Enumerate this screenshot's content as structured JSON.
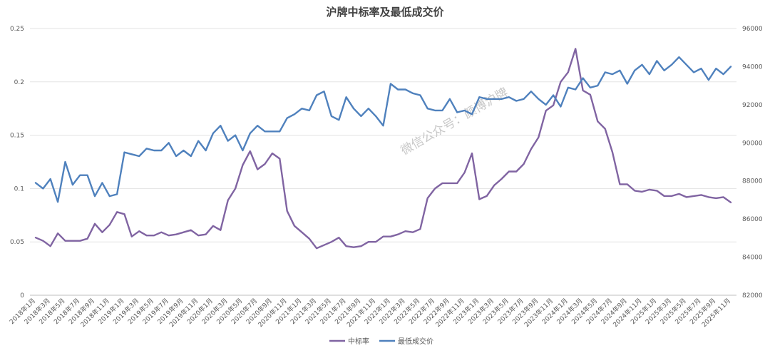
{
  "chart_data": {
    "type": "line",
    "title": "沪牌中标率及最低成交价",
    "watermark": "微信公众号：颜博沪牌",
    "xlabel": "",
    "ylabel": "",
    "ylim": [
      0,
      0.25
    ],
    "y2lim": [
      82000,
      96000
    ],
    "yticks": [
      "0",
      "0.05",
      "0.1",
      "0.15",
      "0.2",
      "0.25"
    ],
    "y2ticks": [
      "82000",
      "84000",
      "86000",
      "88000",
      "90000",
      "92000",
      "94000",
      "96000"
    ],
    "grid": true,
    "legend": "bottom-center",
    "x_tick_labels": [
      "2018年1月",
      "2018年3月",
      "2018年5月",
      "2018年7月",
      "2018年9月",
      "2018年11月",
      "2019年1月",
      "2019年3月",
      "2019年5月",
      "2019年7月",
      "2019年9月",
      "2019年11月",
      "2020年1月",
      "2020年3月",
      "2020年5月",
      "2020年7月",
      "2020年9月",
      "2020年11月",
      "2021年1月",
      "2021年3月",
      "2021年5月",
      "2021年7月",
      "2021年9月",
      "2021年11月",
      "2022年1月",
      "2022年3月",
      "2022年5月",
      "2022年7月",
      "2022年9月",
      "2022年11月",
      "2023年1月",
      "2023年3月",
      "2023年5月",
      "2023年7月",
      "2023年9月",
      "2023年11月",
      "2024年1月",
      "2024年3月",
      "2024年5月",
      "2024年7月",
      "2024年9月",
      "2024年11月",
      "2025年1月",
      "2025年3月",
      "2025年5月",
      "2025年7月",
      "2025年9月",
      "2025年11月"
    ],
    "series": [
      {
        "name": "中标率",
        "axis": "left",
        "color": "#8064a2",
        "values": [
          0.054,
          0.051,
          0.046,
          0.058,
          0.051,
          0.051,
          0.051,
          0.053,
          0.067,
          0.059,
          0.066,
          0.078,
          0.076,
          0.055,
          0.06,
          0.056,
          0.056,
          0.059,
          0.056,
          0.057,
          0.059,
          0.061,
          0.056,
          0.057,
          0.065,
          0.061,
          0.089,
          0.1,
          0.122,
          0.135,
          0.118,
          0.123,
          0.133,
          0.128,
          0.079,
          0.065,
          0.059,
          0.053,
          0.044,
          0.047,
          0.05,
          0.054,
          0.046,
          0.045,
          0.046,
          0.05,
          0.05,
          0.055,
          0.055,
          0.057,
          0.06,
          0.059,
          0.062,
          0.091,
          0.1,
          0.105,
          0.105,
          0.105,
          0.115,
          0.133,
          0.09,
          0.093,
          0.103,
          0.109,
          0.116,
          0.116,
          0.123,
          0.137,
          0.148,
          0.173,
          0.178,
          0.2,
          0.209,
          0.231,
          0.192,
          0.188,
          0.163,
          0.156,
          0.134,
          0.104,
          0.104,
          0.098,
          0.097,
          0.099,
          0.098,
          0.093,
          0.093,
          0.095,
          0.092,
          0.093,
          0.094,
          0.092,
          0.091,
          0.092,
          0.087
        ]
      },
      {
        "name": "最低成交价",
        "axis": "right",
        "color": "#4f81bd",
        "values": [
          87900,
          87600,
          88100,
          86900,
          89000,
          87800,
          88300,
          88300,
          87200,
          87900,
          87200,
          87300,
          89500,
          89400,
          89300,
          89700,
          89600,
          89600,
          90000,
          89300,
          89600,
          89300,
          90100,
          89600,
          90500,
          90900,
          90100,
          90400,
          89600,
          90500,
          90900,
          90600,
          90600,
          90600,
          91300,
          91500,
          91800,
          91700,
          92500,
          92700,
          91400,
          91200,
          92400,
          91800,
          91400,
          91800,
          91400,
          90900,
          93100,
          92800,
          92800,
          92600,
          92500,
          91800,
          91700,
          91700,
          92300,
          91600,
          91700,
          91500,
          92400,
          92300,
          92300,
          92300,
          92400,
          92200,
          92300,
          92700,
          92300,
          92000,
          92500,
          91900,
          92900,
          92800,
          93400,
          92900,
          93000,
          93700,
          93600,
          93800,
          93100,
          93800,
          94100,
          93600,
          94300,
          93800,
          94100,
          94500,
          94100,
          93700,
          93900,
          93300,
          93900,
          93600,
          94000
        ]
      }
    ]
  }
}
